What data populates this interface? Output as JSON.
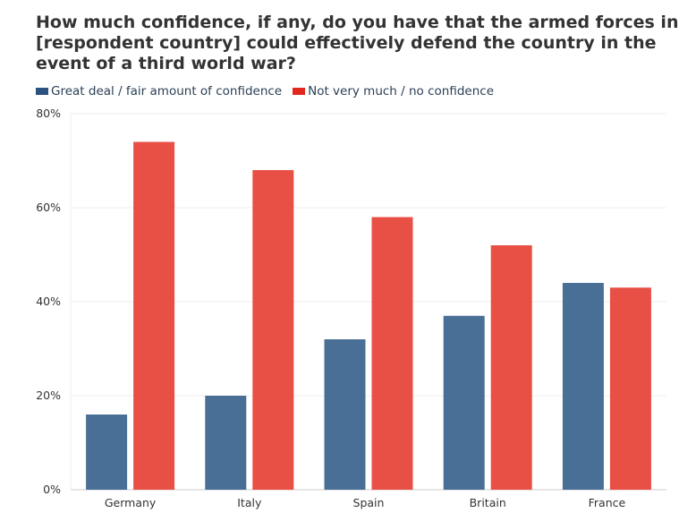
{
  "chart_data": {
    "type": "bar",
    "title": "How much confidence, if any, do you have that the armed forces in [respondent country] could effectively defend the country in the event of a third world war?",
    "xlabel": "",
    "ylabel": "",
    "ylim": [
      0,
      80
    ],
    "yticks": [
      "0%",
      "20%",
      "40%",
      "60%",
      "80%"
    ],
    "ytick_values": [
      0,
      20,
      40,
      60,
      80
    ],
    "grid": true,
    "legend_position": "top-left",
    "categories": [
      "Germany",
      "Italy",
      "Spain",
      "Britain",
      "France"
    ],
    "series": [
      {
        "name": "Great deal / fair amount of confidence",
        "color": "#496f96",
        "legend_color": "#2b5280",
        "values": [
          16,
          20,
          32,
          37,
          44
        ]
      },
      {
        "name": "Not very much / no confidence",
        "color": "#e84f45",
        "legend_color": "#e2271e",
        "values": [
          74,
          68,
          58,
          52,
          43
        ]
      }
    ]
  }
}
